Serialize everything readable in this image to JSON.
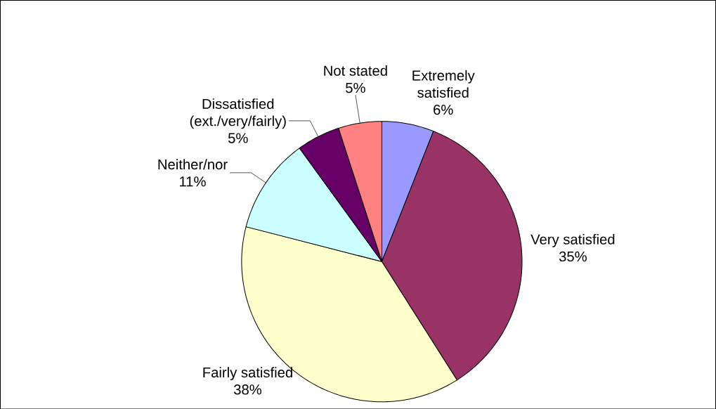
{
  "chart_data": {
    "type": "pie",
    "categories": [
      "Extremely satisfied",
      "Very satisfied",
      "Fairly satisfied",
      "Neither/nor",
      "Dissatisfied (ext./very/fairly)",
      "Not stated"
    ],
    "values": [
      6,
      35,
      38,
      11,
      5,
      5
    ],
    "value_labels": [
      "6%",
      "35%",
      "38%",
      "11%",
      "5%",
      "5%"
    ],
    "colors": [
      "#9999ff",
      "#993366",
      "#ffffcc",
      "#ccffff",
      "#660066",
      "#ff8080"
    ]
  }
}
